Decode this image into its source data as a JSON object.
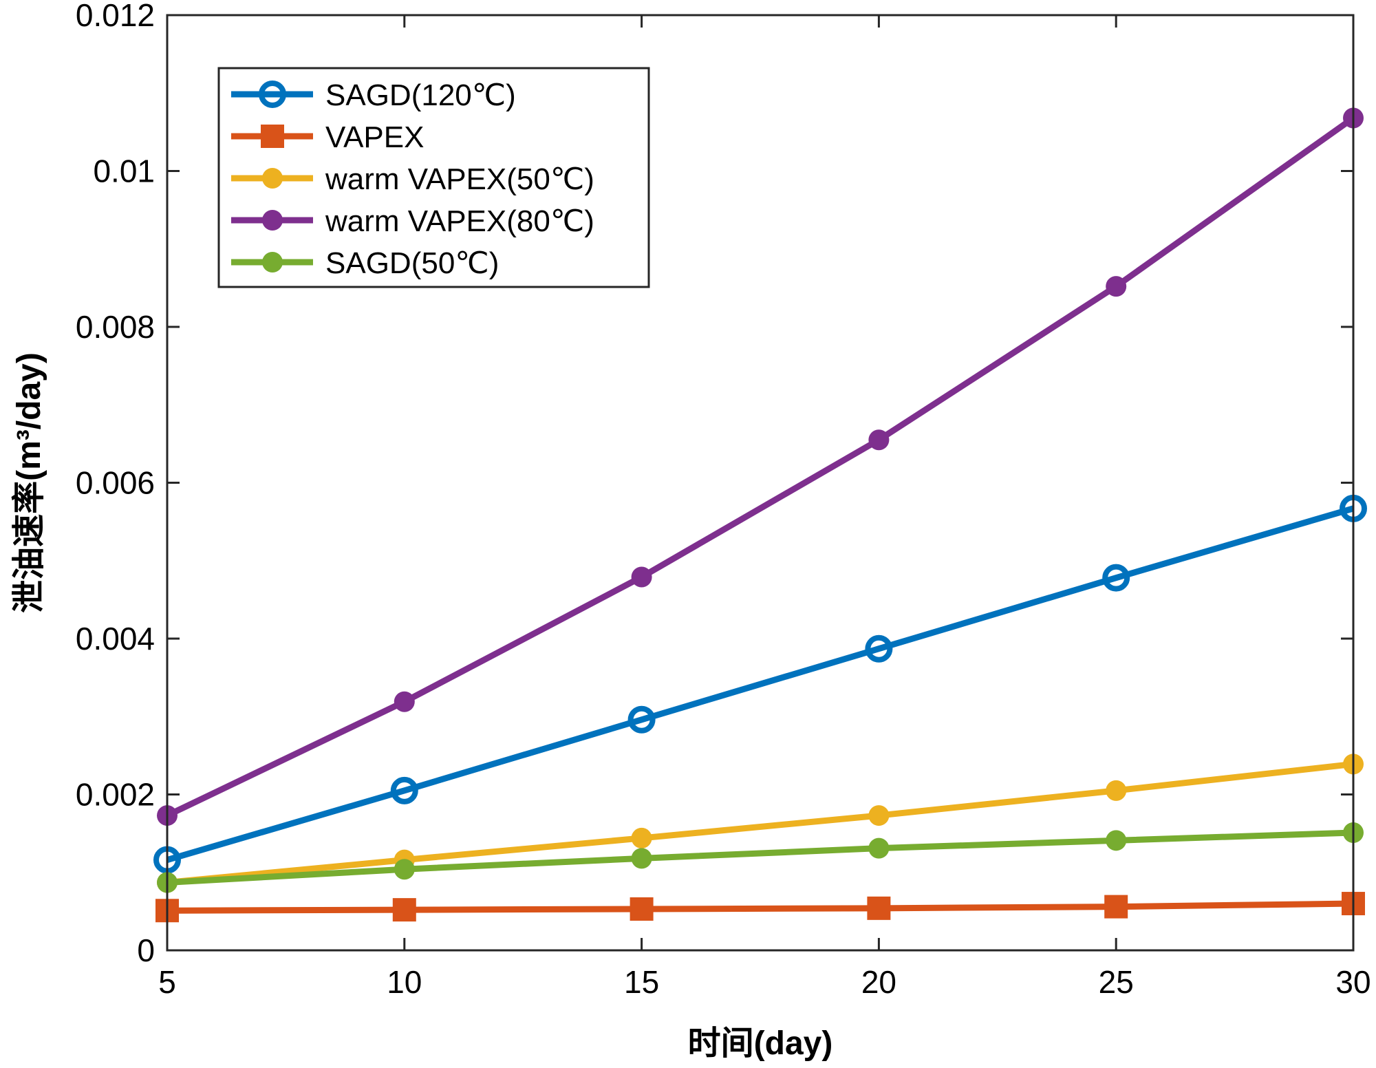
{
  "chart_data": {
    "type": "line",
    "title": "",
    "xlabel": "时间(day)",
    "ylabel": "泄油速率(m³/day)",
    "x": [
      5,
      10,
      15,
      20,
      25,
      30
    ],
    "xlim": [
      5,
      30
    ],
    "ylim": [
      0,
      0.012
    ],
    "xticks": [
      5,
      10,
      15,
      20,
      25,
      30
    ],
    "xtick_labels": [
      "5",
      "10",
      "15",
      "20",
      "25",
      "30"
    ],
    "yticks": [
      0,
      0.002,
      0.004,
      0.006,
      0.008,
      0.01,
      0.012
    ],
    "ytick_labels": [
      "0",
      "0.002",
      "0.004",
      "0.006",
      "0.008",
      "0.01",
      "0.012"
    ],
    "grid": false,
    "legend_position": "top-left",
    "series": [
      {
        "name": "SAGD(120℃)",
        "color": "#0072BD",
        "marker": "circle-open",
        "values": [
          0.00116,
          0.00205,
          0.00296,
          0.00387,
          0.00478,
          0.00567
        ]
      },
      {
        "name": "VAPEX",
        "color": "#D95319",
        "marker": "square",
        "values": [
          0.00051,
          0.00052,
          0.00053,
          0.00054,
          0.00056,
          0.0006
        ]
      },
      {
        "name": "warm VAPEX(50℃)",
        "color": "#EDB120",
        "marker": "circle-filled",
        "values": [
          0.00087,
          0.00116,
          0.00144,
          0.00173,
          0.00205,
          0.00239
        ]
      },
      {
        "name": "warm VAPEX(80℃)",
        "color": "#7E2F8E",
        "marker": "circle-filled",
        "values": [
          0.00173,
          0.00319,
          0.00479,
          0.00655,
          0.00852,
          0.01068
        ]
      },
      {
        "name": "SAGD(50℃)",
        "color": "#77AC30",
        "marker": "circle-filled",
        "values": [
          0.00087,
          0.00104,
          0.00118,
          0.00131,
          0.00141,
          0.00151
        ]
      }
    ]
  }
}
